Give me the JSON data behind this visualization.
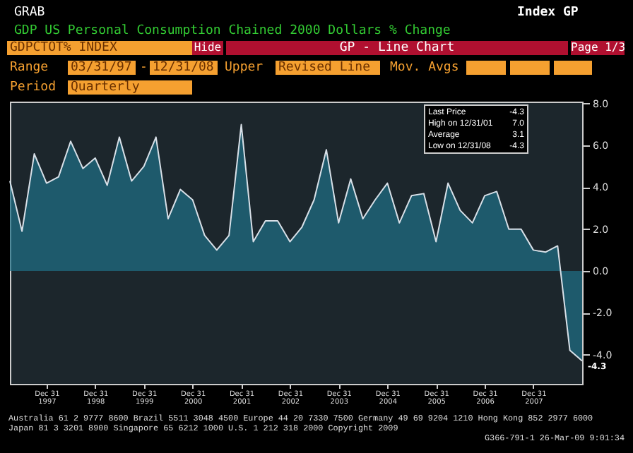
{
  "chart_data": {
    "type": "area",
    "title": "GDP US Personal Consumption Chained 2000 Dollars % Change",
    "x": [
      "1997-03-31",
      "1997-06-30",
      "1997-09-30",
      "1997-12-31",
      "1998-03-31",
      "1998-06-30",
      "1998-09-30",
      "1998-12-31",
      "1999-03-31",
      "1999-06-30",
      "1999-09-30",
      "1999-12-31",
      "2000-03-31",
      "2000-06-30",
      "2000-09-30",
      "2000-12-31",
      "2001-03-31",
      "2001-06-30",
      "2001-09-30",
      "2001-12-31",
      "2002-03-31",
      "2002-06-30",
      "2002-09-30",
      "2002-12-31",
      "2003-03-31",
      "2003-06-30",
      "2003-09-30",
      "2003-12-31",
      "2004-03-31",
      "2004-06-30",
      "2004-09-30",
      "2004-12-31",
      "2005-03-31",
      "2005-06-30",
      "2005-09-30",
      "2005-12-31",
      "2006-03-31",
      "2006-06-30",
      "2006-09-30",
      "2006-12-31",
      "2007-03-31",
      "2007-06-30",
      "2007-09-30",
      "2007-12-31",
      "2008-03-31",
      "2008-06-30",
      "2008-09-30",
      "2008-12-31"
    ],
    "series": [
      {
        "color": "#1f7088",
        "values": [
          4.3,
          1.9,
          5.6,
          4.2,
          4.5,
          6.2,
          4.9,
          5.4,
          4.1,
          6.4,
          4.3,
          5.0,
          6.4,
          2.5,
          3.9,
          3.4,
          1.7,
          1.0,
          1.7,
          7.0,
          1.4,
          2.4,
          2.4,
          1.4,
          2.1,
          3.4,
          5.8,
          2.3,
          4.4,
          2.5,
          3.4,
          4.2,
          2.3,
          3.6,
          3.7,
          1.4,
          4.2,
          2.9,
          2.3,
          3.6,
          3.8,
          2.0,
          2.0,
          1.0,
          0.9,
          1.2,
          -3.8,
          -4.3
        ]
      }
    ],
    "xlim": [
      "1997-03-31",
      "2008-12-31"
    ],
    "xticks": [
      {
        "value": "1997-12-31",
        "label": "Dec 31\n1997"
      },
      {
        "value": "1998-12-31",
        "label": "Dec 31\n1998"
      },
      {
        "value": "1999-12-31",
        "label": "Dec 31\n1999"
      },
      {
        "value": "2000-12-31",
        "label": "Dec 31\n2000"
      },
      {
        "value": "2001-12-31",
        "label": "Dec 31\n2001"
      },
      {
        "value": "2002-12-31",
        "label": "Dec 31\n2002"
      },
      {
        "value": "2003-12-31",
        "label": "Dec 31\n2003"
      },
      {
        "value": "2004-12-31",
        "label": "Dec 31\n2004"
      },
      {
        "value": "2005-12-31",
        "label": "Dec 31\n2005"
      },
      {
        "value": "2006-12-31",
        "label": "Dec 31\n2006"
      },
      {
        "value": "2007-12-31",
        "label": "Dec 31\n2007"
      }
    ],
    "ylim": [
      -5.4,
      8.1
    ],
    "yticks": [
      {
        "value": -4,
        "label": "-4.0"
      },
      {
        "value": -2,
        "label": "-2.0"
      },
      {
        "value": 0,
        "label": "0.0"
      },
      {
        "value": 2,
        "label": "2.0"
      },
      {
        "value": 4,
        "label": "4.0"
      },
      {
        "value": 6,
        "label": "6.0"
      },
      {
        "value": 8,
        "label": "8.0"
      }
    ],
    "grid": false,
    "annotations": [
      "GRAB",
      "Index GP",
      "GDPCTOT% INDEX",
      "Hide",
      "GP - Line Chart",
      "Page 1/3",
      "Range",
      "03/31/97",
      "-",
      "12/31/08",
      "Upper",
      "Revised Line",
      "Mov. Avgs",
      "Period",
      "Quarterly",
      "Last Price",
      "-4.3",
      "High on 12/31/01",
      "7.0",
      "Average",
      "3.1",
      "Low on 12/31/08",
      "-4.3",
      "Australia 61 2 9777 8600 Brazil 5511 3048 4500 Europe 44 20 7330 7500 Germany 49 69 9204 1210 Hong Kong 852 2977 6000",
      "Japan 81 3 3201 8900 Singapore 65 6212 1000 U.S. 1 212 318 2000 Copyright 2009",
      "G366-791-1 26-Mar-09 9:01:34",
      {
        "text": "-4.3",
        "x": "2008-12-31",
        "y": -4.3
      }
    ]
  }
}
